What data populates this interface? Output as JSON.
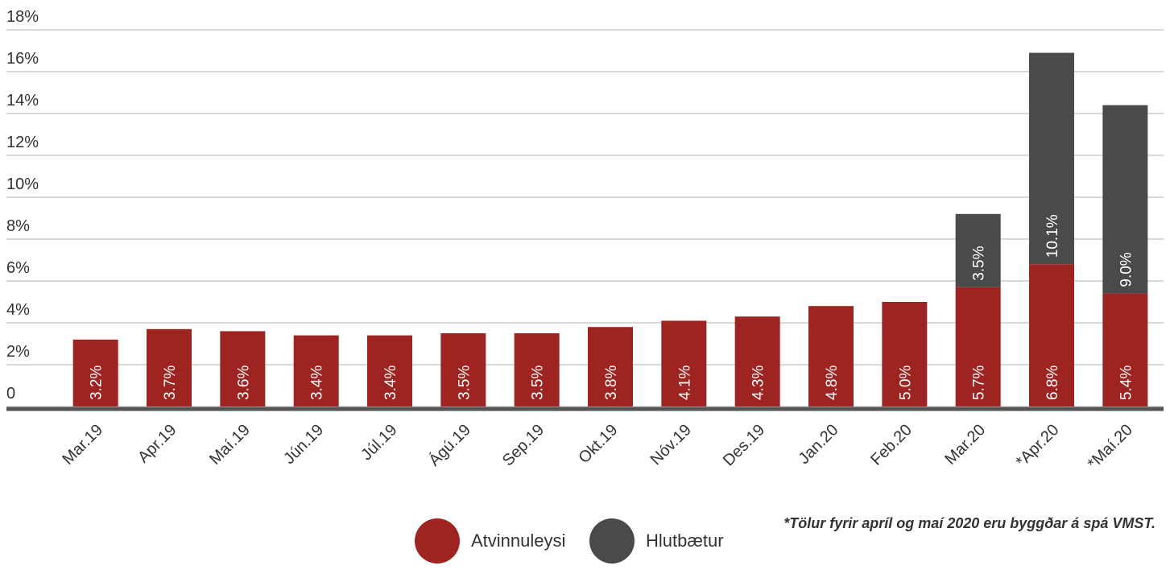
{
  "chart_data": {
    "type": "stacked_bar",
    "categories": [
      "Mar.19",
      "Apr.19",
      "Maí.19",
      "Jún.19",
      "Júl.19",
      "Ágú.19",
      "Sep.19",
      "Okt.19",
      "Nóv.19",
      "Des.19",
      "Jan.20",
      "Feb.20",
      "Mar.20",
      "*Apr.20",
      "*Maí.20"
    ],
    "series": [
      {
        "name": "Atvinnuleysi",
        "color": "#9e2421",
        "values": [
          3.2,
          3.7,
          3.6,
          3.4,
          3.4,
          3.5,
          3.5,
          3.8,
          4.1,
          4.3,
          4.8,
          5.0,
          5.7,
          6.8,
          5.4
        ],
        "value_labels": [
          "3.2%",
          "3.7%",
          "3.6%",
          "3.4%",
          "3.4%",
          "3.5%",
          "3.5%",
          "3.8%",
          "4.1%",
          "4.3%",
          "4.8%",
          "5.0%",
          "5.7%",
          "6.8%",
          "5.4%"
        ]
      },
      {
        "name": "Hlutbætur",
        "color": "#4a4a4a",
        "values": [
          null,
          null,
          null,
          null,
          null,
          null,
          null,
          null,
          null,
          null,
          null,
          null,
          3.5,
          10.1,
          9.0
        ],
        "value_labels": [
          null,
          null,
          null,
          null,
          null,
          null,
          null,
          null,
          null,
          null,
          null,
          null,
          "3.5%",
          "10.1%",
          "9.0%"
        ]
      }
    ],
    "ylim": [
      0,
      18
    ],
    "yticks": [
      0,
      {
        "value": 2,
        "label": "2%"
      },
      {
        "value": 4,
        "label": "4%"
      },
      {
        "value": 6,
        "label": "6%"
      },
      {
        "value": 8,
        "label": "8%"
      },
      {
        "value": 10,
        "label": "10%"
      },
      {
        "value": 12,
        "label": "12%"
      },
      {
        "value": 14,
        "label": "14%"
      },
      {
        "value": 16,
        "label": "16%"
      },
      {
        "value": 18,
        "label": "18%"
      }
    ],
    "grid": true,
    "legend": "bottom",
    "annotation": "*Tölur fyrir apríl og maí 2020 eru byggðar á spá VMST."
  }
}
